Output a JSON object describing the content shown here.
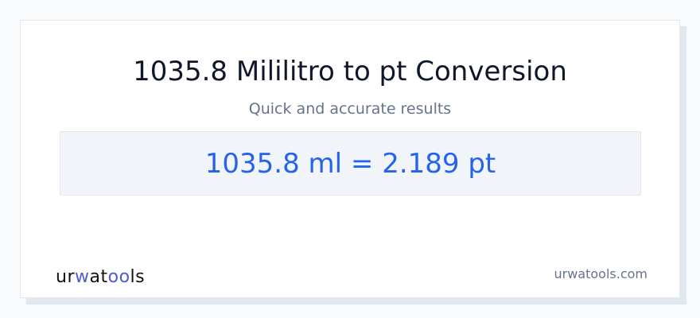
{
  "title": "1035.8 Mililitro to pt Conversion",
  "subtitle": "Quick and accurate results",
  "result": "1035.8 ml = 2.189 pt",
  "logo": {
    "parts": [
      "ur",
      "w",
      "at",
      "oo",
      "ls"
    ],
    "text": "urwatools"
  },
  "site": "urwatools.com",
  "colors": {
    "accent": "#2563eb",
    "logo_accent": "#4f5bd5"
  }
}
